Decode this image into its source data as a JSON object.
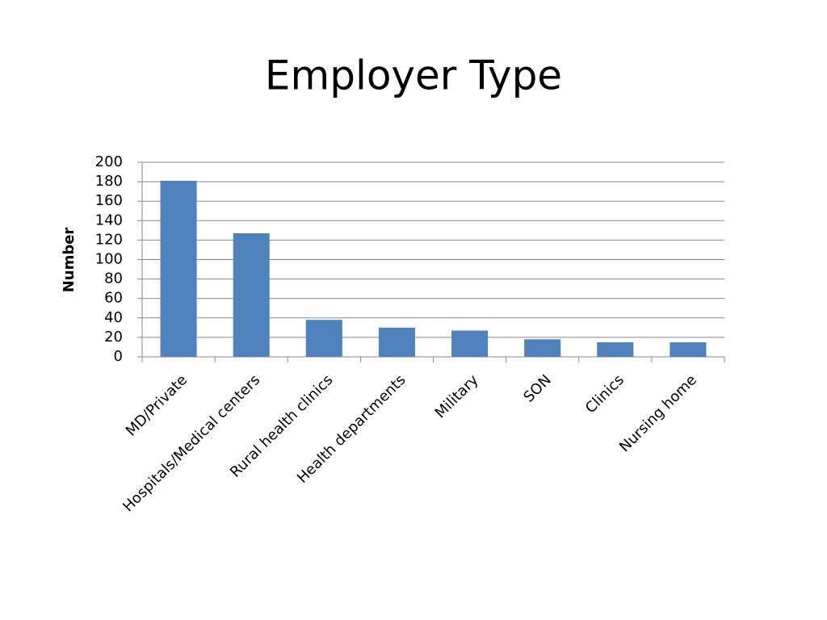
{
  "chart_data": {
    "type": "bar",
    "title": "Employer Type",
    "y_label": "Number",
    "categories": [
      "MD/Private",
      "Hospitals/Medical centers",
      "Rural health clinics",
      "Health departments",
      "Military",
      "SON",
      "Clinics",
      "Nursing home"
    ],
    "values": [
      181,
      127,
      38,
      30,
      27,
      18,
      15,
      15
    ],
    "color": "#4f81bd",
    "ylim": [
      0,
      200
    ],
    "yticks": [
      0,
      20,
      40,
      60,
      80,
      100,
      120,
      140,
      160,
      180,
      200
    ],
    "grid": true
  }
}
